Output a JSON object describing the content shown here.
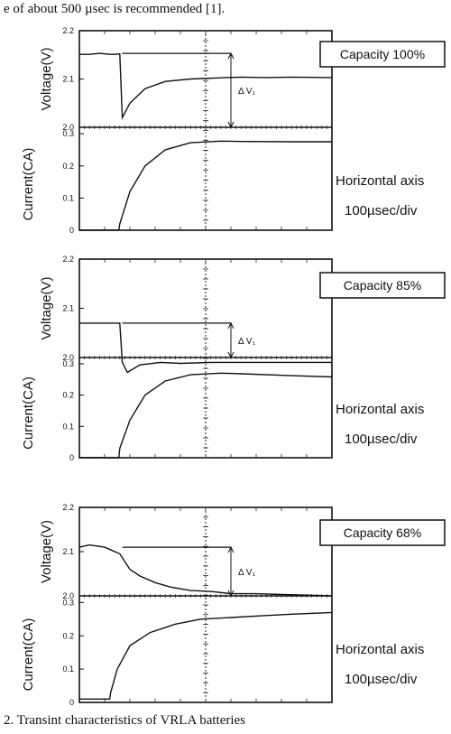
{
  "header_text": "e of about 500 µsec is recommended [1].",
  "caption": "2. Transint characteristics of VRLA batteries",
  "chart_data": [
    {
      "type": "line",
      "title": "",
      "capacity_label": "Capacity 100%",
      "delta_label": "Δ V₁",
      "voltage_axis_label": "Voltage(V)",
      "current_axis_label": "Current(CA)",
      "horizontal_axis_label": "Horizontal axis",
      "horizontal_scale": "100µsec/div",
      "voltage_ticks": [
        "2.2",
        "2.1",
        "2.0"
      ],
      "current_ticks": [
        "0.3",
        "0.2",
        "0.1",
        "0"
      ],
      "voltage_ylim": [
        2.0,
        2.2
      ],
      "current_ylim": [
        0,
        0.32
      ],
      "x_unit": "div",
      "xlim": [
        0,
        5
      ],
      "series": [
        {
          "x": [
            0,
            0.2,
            0.4,
            0.6,
            0.7,
            0.8,
            0.85,
            1.0,
            1.3,
            1.7,
            2.2,
            2.7,
            3.2,
            3.7,
            4.2,
            5.0
          ],
          "values": [
            2.151,
            2.151,
            2.153,
            2.151,
            2.151,
            2.152,
            2.02,
            2.05,
            2.08,
            2.095,
            2.1,
            2.102,
            2.104,
            2.103,
            2.104,
            2.103
          ]
        },
        {
          "x": [
            0,
            0.78,
            0.8,
            1.0,
            1.3,
            1.7,
            2.2,
            2.8,
            3.2,
            4.2,
            5.0
          ],
          "values": [
            0,
            0,
            0.02,
            0.12,
            0.2,
            0.25,
            0.272,
            0.277,
            0.276,
            0.275,
            0.275
          ]
        }
      ],
      "reference_levels": {
        "upper": 2.153,
        "base": 2.0
      }
    },
    {
      "type": "line",
      "title": "",
      "capacity_label": "Capacity 85%",
      "delta_label": "Δ V₁",
      "voltage_axis_label": "Voltage(V)",
      "current_axis_label": "Current(CA)",
      "horizontal_axis_label": "Horizontal axis",
      "horizontal_scale": "100µsec/div",
      "voltage_ticks": [
        "2.2",
        "2.1",
        "2.0"
      ],
      "current_ticks": [
        "0.3",
        "0.2",
        "0.1",
        "0"
      ],
      "voltage_ylim": [
        2.0,
        2.2
      ],
      "current_ylim": [
        0,
        0.32
      ],
      "x_unit": "div",
      "xlim": [
        0,
        5
      ],
      "series": [
        {
          "x": [
            0,
            0.5,
            0.8,
            0.85,
            0.95,
            1.2,
            1.6,
            2.0,
            2.6,
            3.2,
            4.0,
            5.0
          ],
          "values": [
            2.07,
            2.07,
            2.07,
            1.99,
            1.97,
            1.985,
            1.99,
            1.988,
            1.99,
            1.99,
            1.99,
            1.99
          ]
        },
        {
          "x": [
            0,
            0.78,
            0.8,
            1.0,
            1.3,
            1.7,
            2.2,
            2.8,
            3.2,
            4.2,
            5.0
          ],
          "values": [
            0,
            0,
            0.03,
            0.12,
            0.2,
            0.245,
            0.265,
            0.27,
            0.268,
            0.262,
            0.258
          ]
        }
      ],
      "reference_levels": {
        "upper": 2.07,
        "base": 2.0
      }
    },
    {
      "type": "line",
      "title": "",
      "capacity_label": "Capacity 68%",
      "delta_label": "Δ V₁",
      "voltage_axis_label": "Voltage(V)",
      "current_axis_label": "Current(CA)",
      "horizontal_axis_label": "Horizontal axis",
      "horizontal_scale": "100µsec/div",
      "voltage_ticks": [
        "2.2",
        "2.1",
        "2.0"
      ],
      "current_ticks": [
        "0.3",
        "0.2",
        "0.1",
        "0"
      ],
      "voltage_ylim": [
        2.0,
        2.2
      ],
      "current_ylim": [
        0,
        0.32
      ],
      "x_unit": "div",
      "xlim": [
        0,
        5
      ],
      "series": [
        {
          "x": [
            0,
            0.2,
            0.5,
            0.8,
            1.0,
            1.2,
            1.5,
            1.8,
            2.2,
            2.6,
            3.0,
            3.5,
            4.0,
            5.0
          ],
          "values": [
            2.11,
            2.115,
            2.11,
            2.095,
            2.06,
            2.045,
            2.03,
            2.02,
            2.012,
            2.01,
            2.005,
            2.005,
            2.003,
            2.0
          ]
        },
        {
          "x": [
            0,
            0.6,
            0.62,
            0.75,
            1.0,
            1.4,
            1.9,
            2.4,
            3.0,
            3.6,
            4.2,
            5.0
          ],
          "values": [
            0.01,
            0.01,
            0.03,
            0.1,
            0.17,
            0.21,
            0.235,
            0.25,
            0.255,
            0.26,
            0.265,
            0.27
          ]
        }
      ],
      "reference_levels": {
        "upper": 2.11,
        "base": 2.0
      }
    }
  ]
}
